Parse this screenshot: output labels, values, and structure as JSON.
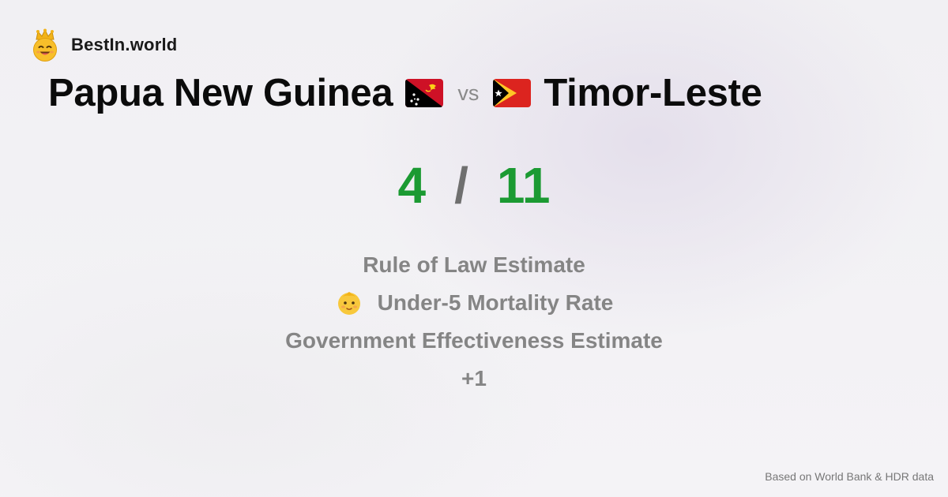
{
  "brand": {
    "name": "BestIn.world",
    "logo_icon": "crowned-smiley-icon"
  },
  "comparison": {
    "country_a": {
      "name": "Papua New Guinea",
      "flag_icon": "papua-new-guinea-flag-icon"
    },
    "vs_label": "vs",
    "country_b": {
      "name": "Timor-Leste",
      "flag_icon": "timor-leste-flag-icon"
    }
  },
  "score": {
    "a": "4",
    "separator": "/",
    "b": "11",
    "color": "#1b9a32"
  },
  "metrics": [
    {
      "label": "Rule of Law Estimate",
      "icon": null
    },
    {
      "label": "Under-5 Mortality Rate",
      "icon": "baby-face-icon"
    },
    {
      "label": "Government Effectiveness Estimate",
      "icon": null
    },
    {
      "label": "+1",
      "icon": null
    }
  ],
  "footer": {
    "source": "Based on World Bank & HDR data"
  }
}
